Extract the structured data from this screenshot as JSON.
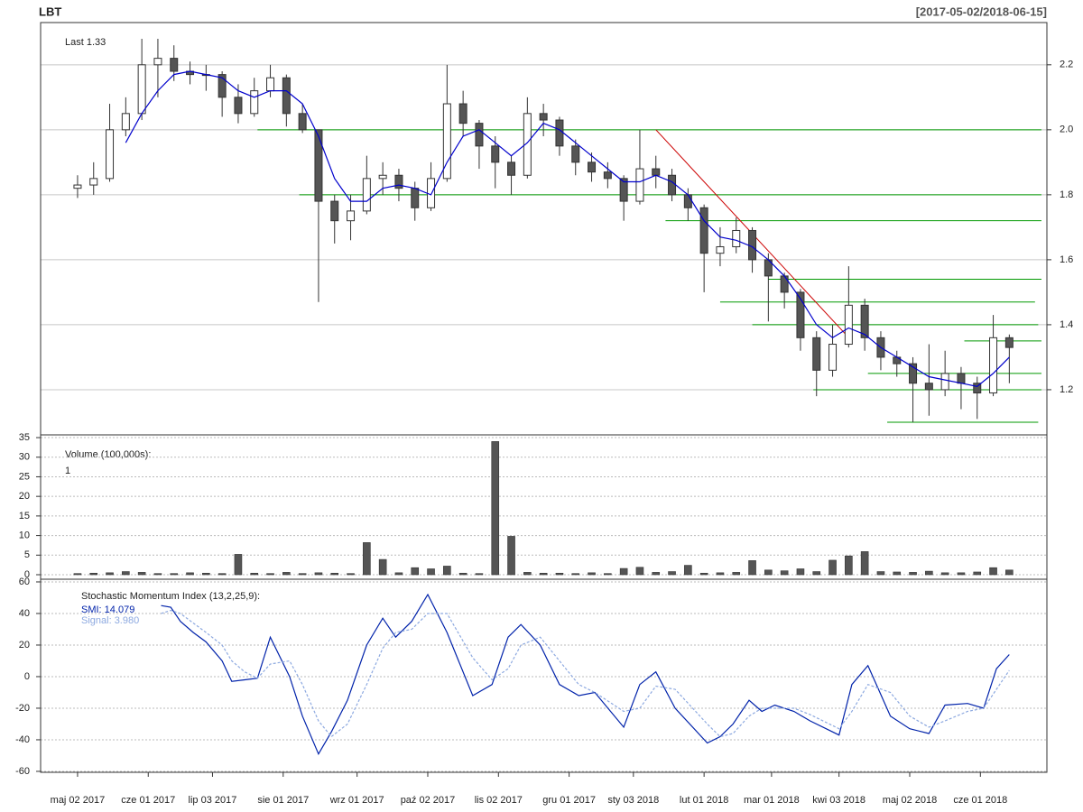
{
  "chart_data": [
    {
      "type": "candlestick",
      "title": "LBT",
      "subtitle": "[2017-05-02/2018-06-15]",
      "annotation": "Last 1.33",
      "x": [
        0,
        5,
        10,
        15,
        20,
        25,
        30,
        35,
        40,
        45,
        50,
        55,
        60,
        65,
        70,
        75,
        80,
        85,
        90,
        95,
        100,
        105,
        110,
        115,
        120,
        125,
        130,
        135,
        140,
        145,
        150,
        155,
        160,
        165,
        170,
        175,
        180,
        185,
        190,
        195,
        200,
        205,
        210,
        215,
        220,
        225,
        230,
        235,
        240,
        245,
        250,
        255,
        260,
        265,
        270,
        275,
        280,
        285,
        290
      ],
      "open": [
        1.82,
        1.83,
        1.85,
        2.0,
        2.05,
        2.2,
        2.22,
        2.18,
        2.17,
        2.17,
        2.1,
        2.05,
        2.12,
        2.16,
        2.05,
        2.0,
        1.78,
        1.72,
        1.75,
        1.85,
        1.86,
        1.82,
        1.76,
        1.85,
        2.08,
        2.02,
        1.95,
        1.9,
        1.86,
        2.05,
        2.03,
        1.95,
        1.9,
        1.87,
        1.85,
        1.78,
        1.88,
        1.86,
        1.8,
        1.76,
        1.62,
        1.64,
        1.69,
        1.6,
        1.55,
        1.5,
        1.36,
        1.26,
        1.34,
        1.46,
        1.36,
        1.3,
        1.28,
        1.22,
        1.2,
        1.25,
        1.22,
        1.19,
        1.36
      ],
      "high": [
        1.86,
        1.9,
        2.08,
        2.1,
        2.28,
        2.28,
        2.26,
        2.21,
        2.2,
        2.18,
        2.14,
        2.16,
        2.2,
        2.17,
        2.08,
        2.0,
        1.8,
        1.8,
        1.92,
        1.9,
        1.88,
        1.84,
        1.9,
        2.2,
        2.12,
        2.03,
        1.98,
        1.92,
        2.1,
        2.08,
        2.04,
        1.97,
        1.93,
        1.9,
        1.86,
        2.0,
        1.92,
        1.88,
        1.82,
        1.77,
        1.7,
        1.73,
        1.7,
        1.62,
        1.56,
        1.51,
        1.38,
        1.4,
        1.58,
        1.48,
        1.38,
        1.32,
        1.3,
        1.34,
        1.32,
        1.27,
        1.24,
        1.43,
        1.37
      ],
      "low": [
        1.79,
        1.8,
        1.84,
        1.98,
        2.03,
        2.1,
        2.15,
        2.14,
        2.12,
        2.04,
        2.02,
        2.04,
        2.1,
        2.01,
        1.99,
        1.47,
        1.65,
        1.66,
        1.74,
        1.8,
        1.78,
        1.72,
        1.75,
        1.84,
        1.98,
        1.88,
        1.82,
        1.8,
        1.85,
        1.98,
        1.92,
        1.86,
        1.84,
        1.82,
        1.72,
        1.77,
        1.82,
        1.78,
        1.72,
        1.5,
        1.58,
        1.62,
        1.56,
        1.41,
        1.45,
        1.32,
        1.18,
        1.24,
        1.33,
        1.32,
        1.26,
        1.24,
        1.1,
        1.12,
        1.18,
        1.14,
        1.11,
        1.18,
        1.22
      ],
      "close": [
        1.83,
        1.85,
        2.0,
        2.05,
        2.2,
        2.22,
        2.18,
        2.17,
        2.17,
        2.1,
        2.05,
        2.12,
        2.16,
        2.05,
        2.0,
        1.78,
        1.72,
        1.75,
        1.85,
        1.86,
        1.82,
        1.76,
        1.85,
        2.08,
        2.02,
        1.95,
        1.9,
        1.86,
        2.05,
        2.03,
        1.95,
        1.9,
        1.87,
        1.85,
        1.78,
        1.88,
        1.86,
        1.8,
        1.76,
        1.62,
        1.64,
        1.69,
        1.6,
        1.55,
        1.5,
        1.36,
        1.26,
        1.34,
        1.46,
        1.36,
        1.3,
        1.28,
        1.22,
        1.2,
        1.25,
        1.22,
        1.19,
        1.36,
        1.33
      ],
      "up_color": "#ffffff",
      "down_color": "#555555",
      "ma": {
        "color": "#0000cc",
        "values": [
          null,
          null,
          null,
          1.96,
          2.05,
          2.12,
          2.17,
          2.18,
          2.17,
          2.16,
          2.12,
          2.1,
          2.12,
          2.12,
          2.08,
          1.98,
          1.85,
          1.78,
          1.78,
          1.82,
          1.83,
          1.82,
          1.8,
          1.9,
          1.98,
          2.0,
          1.96,
          1.92,
          1.96,
          2.02,
          2.0,
          1.96,
          1.92,
          1.88,
          1.84,
          1.84,
          1.86,
          1.84,
          1.8,
          1.72,
          1.67,
          1.66,
          1.64,
          1.6,
          1.55,
          1.48,
          1.4,
          1.36,
          1.39,
          1.37,
          1.33,
          1.3,
          1.27,
          1.24,
          1.23,
          1.22,
          1.21,
          1.25,
          1.3
        ]
      },
      "hlines": {
        "color": "#009900",
        "y": [
          2.0,
          1.8,
          1.72,
          1.54,
          1.47,
          1.4,
          1.35,
          1.25,
          1.2,
          1.1
        ],
        "x0": [
          56,
          69,
          183,
          215,
          200,
          210,
          276,
          246,
          229,
          252
        ],
        "x1": [
          300,
          300,
          300,
          300,
          298,
          299,
          300,
          300,
          300,
          299
        ]
      },
      "trendline": {
        "color": "#cc0000",
        "x": [
          180,
          241
        ],
        "y": [
          2.0,
          1.35
        ]
      },
      "xlim": [
        -11.5,
        301.7
      ],
      "ylim": [
        1.061,
        2.33
      ],
      "yticks": [
        1.2,
        1.4,
        1.6,
        1.8,
        {
          "value": 2,
          "label": "2.0"
        },
        2.2
      ],
      "grid": true
    },
    {
      "type": "bar",
      "title": "Volume (100,000s):",
      "annotation": "1",
      "color": "#555555",
      "x": [
        0,
        5,
        10,
        15,
        20,
        25,
        30,
        35,
        40,
        45,
        50,
        55,
        60,
        65,
        70,
        75,
        80,
        85,
        90,
        95,
        100,
        105,
        110,
        115,
        120,
        125,
        130,
        135,
        140,
        145,
        150,
        155,
        160,
        165,
        170,
        175,
        180,
        185,
        190,
        195,
        200,
        205,
        210,
        215,
        220,
        225,
        230,
        235,
        240,
        245,
        250,
        255,
        260,
        265,
        270,
        275,
        280,
        285,
        290
      ],
      "values": [
        0.3,
        0.4,
        0.5,
        0.8,
        0.6,
        0.3,
        0.3,
        0.5,
        0.4,
        0.3,
        5.2,
        0.4,
        0.3,
        0.6,
        0.3,
        0.5,
        0.4,
        0.3,
        8.2,
        3.9,
        0.5,
        1.8,
        1.5,
        2.2,
        0.4,
        0.3,
        34,
        9.8,
        0.6,
        0.4,
        0.4,
        0.3,
        0.5,
        0.3,
        1.6,
        1.9,
        0.6,
        0.8,
        2.4,
        0.4,
        0.5,
        0.6,
        3.6,
        1.2,
        1.0,
        1.5,
        0.8,
        3.7,
        4.8,
        5.9,
        0.8,
        0.7,
        0.6,
        0.9,
        0.5,
        0.5,
        0.7,
        1.8,
        1.2
      ],
      "xlim": [
        -11.5,
        301.7
      ],
      "ylim": [
        -1.15,
        35.7
      ],
      "yticks": [
        0,
        5,
        10,
        15,
        20,
        25,
        30,
        35
      ],
      "grid": true
    },
    {
      "type": "line",
      "title": "Stochastic Momentum Index (13,2,25,9):",
      "x": [
        26,
        29,
        32,
        36,
        40,
        45,
        48,
        52,
        56,
        60,
        66,
        70,
        75,
        79,
        84,
        90,
        95,
        99,
        104,
        109,
        115,
        123,
        129,
        134,
        138,
        144,
        150,
        156,
        161,
        170,
        175,
        180,
        186,
        196,
        200,
        204,
        209,
        213,
        217,
        223,
        228,
        237,
        241,
        246,
        253,
        259,
        265,
        270,
        277,
        282,
        286,
        290
      ],
      "series": [
        {
          "name": "SMI: 14.079",
          "color": "#0022aa",
          "values": [
            45,
            44,
            35,
            28,
            22,
            10,
            -3,
            -2,
            -1,
            25,
            0,
            -25,
            -49,
            -35,
            -15,
            20,
            37,
            25,
            35,
            52,
            28,
            -12,
            -5,
            25,
            33,
            20,
            -5,
            -12,
            -10,
            -32,
            -5,
            3,
            -20,
            -42,
            -38,
            -30,
            -15,
            -22,
            -18,
            -22,
            -28,
            -37,
            -5,
            7,
            -25,
            -33,
            -36,
            -18,
            -17,
            -20,
            5,
            14
          ]
        },
        {
          "name": "Signal: 3.980",
          "color": "#8da9e0",
          "values": [
            40,
            42,
            40,
            34,
            28,
            20,
            10,
            3,
            -1,
            8,
            10,
            -5,
            -28,
            -38,
            -30,
            -5,
            18,
            28,
            30,
            40,
            40,
            12,
            -2,
            5,
            20,
            25,
            10,
            -5,
            -10,
            -22,
            -20,
            -6,
            -8,
            -30,
            -38,
            -36,
            -25,
            -20,
            -20,
            -20,
            -24,
            -33,
            -22,
            -5,
            -10,
            -25,
            -32,
            -28,
            -22,
            -20,
            -8,
            4
          ]
        }
      ],
      "xlim": [
        -11.5,
        301.7
      ],
      "ylim": [
        -60.6,
        61.7
      ],
      "yticks": [
        -60,
        -40,
        -20,
        0,
        20,
        40,
        60
      ],
      "grid": true,
      "xticks": [
        {
          "value": 0,
          "label": "maj 02 2017"
        },
        {
          "value": 22,
          "label": "cze 01 2017"
        },
        {
          "value": 42,
          "label": "lip 03 2017"
        },
        {
          "value": 64,
          "label": "sie 01 2017"
        },
        {
          "value": 87,
          "label": "wrz 01 2017"
        },
        {
          "value": 109,
          "label": "paź 02 2017"
        },
        {
          "value": 131,
          "label": "lis 02 2017"
        },
        {
          "value": 153,
          "label": "gru 01 2017"
        },
        {
          "value": 173,
          "label": "sty 03 2018"
        },
        {
          "value": 195,
          "label": "lut 01 2018"
        },
        {
          "value": 216,
          "label": "mar 01 2018"
        },
        {
          "value": 237,
          "label": "kwi 03 2018"
        },
        {
          "value": 259,
          "label": "maj 02 2018"
        },
        {
          "value": 281,
          "label": "cze 01 2018"
        }
      ]
    }
  ]
}
